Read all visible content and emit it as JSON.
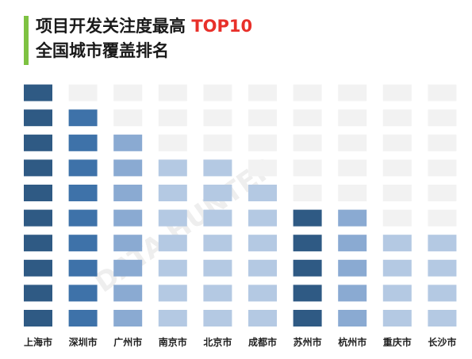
{
  "title": {
    "line1_main": "项目开发关注度最高 ",
    "line1_highlight": "TOP10",
    "line2": "全国城市覆盖排名"
  },
  "watermark": "DATA HUNTER",
  "colors": {
    "accent_bar": "#7ec242",
    "highlight_text": "#e8302a",
    "empty_cell": "#f2f2f2"
  },
  "chart_data": {
    "type": "waffle",
    "title": "项目开发关注度最高 TOP10 全国城市覆盖排名",
    "categories": [
      "上海市",
      "深圳市",
      "广州市",
      "南京市",
      "北京市",
      "成都市",
      "苏州市",
      "杭州市",
      "重庆市",
      "长沙市"
    ],
    "values": [
      10,
      9,
      8,
      7,
      7,
      6,
      5,
      5,
      4,
      4
    ],
    "max_cells": 10,
    "cell_colors": [
      "#2f5a84",
      "#3e72a9",
      "#8aaad2",
      "#b4c9e3",
      "#b4c9e3",
      "#b4c9e3",
      "#2f5a84",
      "#8aaad2",
      "#b4c9e3",
      "#b4c9e3"
    ],
    "grid": false,
    "legend": "none"
  }
}
